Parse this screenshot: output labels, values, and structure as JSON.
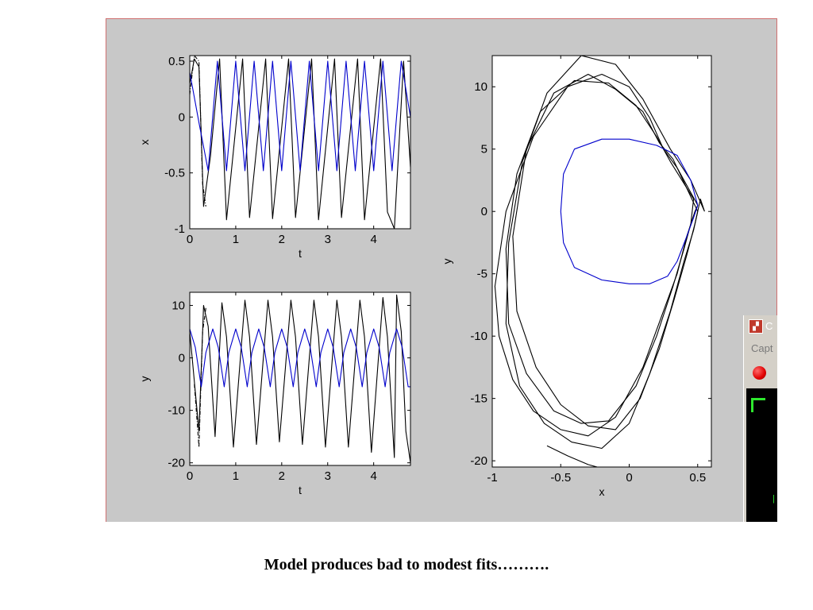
{
  "caption": "Model produces bad to modest fits……….",
  "capture_window": {
    "title_fragment": "C",
    "menu_fragment": "Capt",
    "icon": "film-clapper-icon",
    "record_icon": "red-record-icon"
  },
  "colors": {
    "panel_background": "#c8c8c8",
    "axes_background": "#ffffff",
    "observed_series": "#000000",
    "model_series": "#0000cc",
    "panel_border": "#d07070"
  },
  "chart_data": [
    {
      "type": "line",
      "xlabel": "t",
      "ylabel": "x",
      "xlim": [
        0,
        4.8
      ],
      "ylim": [
        -1,
        0.55
      ],
      "xticks": [
        0,
        1,
        2,
        3,
        4
      ],
      "xtick_labels": [
        "0",
        "1",
        "2",
        "3",
        "4"
      ],
      "yticks": [
        -1,
        -0.5,
        0,
        0.5
      ],
      "ytick_labels": [
        "-1",
        "-0.5",
        "0",
        "0.5"
      ],
      "grid": false,
      "series": [
        {
          "color": "#000000",
          "style": "solid",
          "x": [
            0.0,
            0.1,
            0.2,
            0.3,
            0.45,
            0.65,
            0.8,
            1.15,
            1.3,
            1.65,
            1.8,
            2.15,
            2.3,
            2.65,
            2.8,
            3.15,
            3.3,
            3.65,
            3.8,
            4.15,
            4.3,
            4.45,
            4.65,
            4.8
          ],
          "y": [
            0.3,
            0.52,
            0.45,
            -0.8,
            -0.35,
            0.52,
            -0.92,
            0.52,
            -0.9,
            0.52,
            -0.91,
            0.52,
            -0.9,
            0.52,
            -0.92,
            0.52,
            -0.9,
            0.52,
            -0.92,
            0.52,
            -0.85,
            -1.0,
            0.5,
            -0.45
          ]
        },
        {
          "color": "#000000",
          "style": "dashdot",
          "x": [
            0.0,
            0.1,
            0.2,
            0.28,
            0.35
          ],
          "y": [
            0.2,
            0.55,
            0.5,
            -0.6,
            -0.8
          ]
        },
        {
          "color": "#0000cc",
          "style": "solid",
          "x": [
            0.0,
            0.2,
            0.4,
            0.6,
            0.8,
            1.0,
            1.2,
            1.4,
            1.6,
            1.8,
            2.0,
            2.2,
            2.4,
            2.6,
            2.8,
            3.0,
            3.2,
            3.4,
            3.6,
            3.8,
            4.0,
            4.2,
            4.4,
            4.6,
            4.8
          ],
          "y": [
            0.4,
            -0.05,
            -0.48,
            0.5,
            -0.48,
            0.5,
            -0.48,
            0.5,
            -0.48,
            0.5,
            -0.48,
            0.5,
            -0.48,
            0.5,
            -0.48,
            0.5,
            -0.48,
            0.5,
            -0.48,
            0.5,
            -0.48,
            0.5,
            -0.48,
            0.5,
            0.0
          ]
        }
      ]
    },
    {
      "type": "line",
      "xlabel": "t",
      "ylabel": "y",
      "xlim": [
        0,
        4.8
      ],
      "ylim": [
        -20.5,
        12.5
      ],
      "xticks": [
        0,
        1,
        2,
        3,
        4
      ],
      "xtick_labels": [
        "0",
        "1",
        "2",
        "3",
        "4"
      ],
      "yticks": [
        -20,
        -10,
        0,
        10
      ],
      "ytick_labels": [
        "-20",
        "-10",
        "0",
        "10"
      ],
      "grid": false,
      "series": [
        {
          "color": "#000000",
          "style": "solid",
          "x": [
            0.0,
            0.2,
            0.3,
            0.4,
            0.55,
            0.7,
            0.8,
            0.95,
            1.2,
            1.3,
            1.45,
            1.7,
            1.8,
            1.95,
            2.2,
            2.3,
            2.45,
            2.7,
            2.8,
            2.95,
            3.2,
            3.3,
            3.45,
            3.7,
            3.8,
            3.95,
            4.2,
            4.3,
            4.45,
            4.5,
            4.6,
            4.7,
            4.8
          ],
          "y": [
            5.0,
            -14.0,
            10.0,
            6.0,
            -15.0,
            10.5,
            4.0,
            -17.0,
            11.0,
            4.0,
            -16.5,
            11.0,
            4.0,
            -16.0,
            11.0,
            4.0,
            -16.5,
            11.0,
            4.0,
            -17.0,
            11.0,
            4.0,
            -17.0,
            11.0,
            4.0,
            -18.0,
            11.5,
            4.0,
            -19.0,
            12.0,
            5.0,
            -14.0,
            -20.0
          ]
        },
        {
          "color": "#000000",
          "style": "dashdot",
          "x": [
            0.1,
            0.2,
            0.28,
            0.35
          ],
          "y": [
            -5.0,
            -17.0,
            5.0,
            9.5
          ]
        },
        {
          "color": "#0000cc",
          "style": "solid",
          "x": [
            0.0,
            0.12,
            0.25,
            0.35,
            0.5,
            0.62,
            0.75,
            0.85,
            1.0,
            1.12,
            1.25,
            1.35,
            1.5,
            1.62,
            1.75,
            1.85,
            2.0,
            2.12,
            2.25,
            2.35,
            2.5,
            2.62,
            2.75,
            2.85,
            3.0,
            3.12,
            3.25,
            3.35,
            3.5,
            3.62,
            3.75,
            3.85,
            4.0,
            4.12,
            4.25,
            4.35,
            4.5,
            4.62,
            4.75,
            4.8
          ],
          "y": [
            5.5,
            2.0,
            -5.5,
            1.0,
            5.5,
            2.0,
            -5.5,
            1.0,
            5.5,
            2.0,
            -5.5,
            1.0,
            5.5,
            2.0,
            -5.5,
            1.0,
            5.5,
            2.0,
            -5.5,
            1.0,
            5.5,
            2.0,
            -5.5,
            1.0,
            5.5,
            2.0,
            -5.5,
            1.0,
            5.5,
            2.0,
            -5.5,
            1.0,
            5.5,
            2.0,
            -5.5,
            1.0,
            5.5,
            2.0,
            -5.5,
            -5.5
          ]
        }
      ]
    },
    {
      "type": "line",
      "xlabel": "x",
      "ylabel": "y",
      "xlim": [
        -1,
        0.6
      ],
      "ylim": [
        -20.5,
        12.5
      ],
      "xticks": [
        -1,
        -0.5,
        0,
        0.5
      ],
      "xtick_labels": [
        "-1",
        "-0.5",
        "0",
        "0.5"
      ],
      "yticks": [
        -20,
        -15,
        -10,
        -5,
        0,
        5,
        10
      ],
      "ytick_labels": [
        "-20",
        "-15",
        "-10",
        "-5",
        "0",
        "5",
        "10"
      ],
      "grid": false,
      "series": [
        {
          "color": "#000000",
          "style": "solid",
          "x": [
            0.5,
            0.35,
            0.25,
            0.15,
            0.0,
            -0.2,
            -0.45,
            -0.7,
            -0.9,
            -0.98,
            -0.95,
            -0.85,
            -0.7,
            -0.5,
            -0.3,
            -0.1,
            0.1,
            0.25,
            0.35,
            0.42,
            0.48,
            0.5
          ],
          "y": [
            0.5,
            3.5,
            5.0,
            7.5,
            10.0,
            11.0,
            10.0,
            6.0,
            0.0,
            -6.0,
            -10.0,
            -13.5,
            -16.0,
            -17.5,
            -18.0,
            -16.5,
            -12.5,
            -8.0,
            -5.0,
            -2.0,
            0.0,
            0.5
          ]
        },
        {
          "color": "#000000",
          "style": "solid",
          "x": [
            0.47,
            0.3,
            0.2,
            0.05,
            -0.15,
            -0.4,
            -0.65,
            -0.82,
            -0.9,
            -0.88,
            -0.75,
            -0.55,
            -0.35,
            -0.15,
            0.05,
            0.2,
            0.32,
            0.4,
            0.45,
            0.47
          ],
          "y": [
            1.0,
            4.0,
            6.0,
            8.5,
            10.3,
            10.5,
            8.0,
            3.0,
            -3.0,
            -9.0,
            -13.0,
            -16.0,
            -17.0,
            -16.8,
            -14.0,
            -10.0,
            -6.0,
            -3.0,
            -1.0,
            1.0
          ]
        },
        {
          "color": "#000000",
          "style": "solid",
          "x": [
            0.5,
            0.32,
            0.22,
            0.1,
            -0.1,
            -0.3,
            -0.55,
            -0.75,
            -0.85,
            -0.82,
            -0.68,
            -0.5,
            -0.3,
            -0.1,
            0.08,
            0.22,
            0.33,
            0.42,
            0.48,
            0.5
          ],
          "y": [
            0.0,
            4.2,
            5.5,
            8.0,
            9.8,
            11.0,
            9.5,
            5.0,
            -2.0,
            -8.0,
            -12.5,
            -15.5,
            -17.2,
            -17.5,
            -15.0,
            -11.0,
            -7.0,
            -3.5,
            -1.0,
            0.0
          ]
        },
        {
          "color": "#000000",
          "style": "solid",
          "x": [
            0.55,
            0.45,
            0.3,
            0.1,
            -0.1,
            -0.35,
            -0.6,
            -0.78,
            -0.88,
            -0.9,
            -0.8,
            -0.62,
            -0.42,
            -0.2,
            0.0,
            0.15,
            0.3,
            0.4,
            0.47,
            0.52,
            0.55
          ],
          "y": [
            0.0,
            2.5,
            5.0,
            9.0,
            11.8,
            12.5,
            9.5,
            4.0,
            -2.5,
            -9.0,
            -14.0,
            -17.0,
            -18.5,
            -19.0,
            -17.0,
            -13.0,
            -8.0,
            -4.0,
            -1.5,
            1.0,
            0.0
          ]
        },
        {
          "color": "#000000",
          "style": "solid",
          "x": [
            -0.6,
            -0.45,
            -0.3,
            -0.2
          ],
          "y": [
            -18.8,
            -19.6,
            -20.3,
            -20.6
          ]
        },
        {
          "color": "#0000cc",
          "style": "solid",
          "x": [
            0.5,
            0.45,
            0.35,
            0.2,
            0.0,
            -0.2,
            -0.4,
            -0.48,
            -0.5,
            -0.48,
            -0.4,
            -0.2,
            0.0,
            0.15,
            0.28,
            0.35,
            0.42,
            0.47,
            0.5
          ],
          "y": [
            0.5,
            2.5,
            4.5,
            5.3,
            5.8,
            5.8,
            5.0,
            3.0,
            0.0,
            -2.5,
            -4.5,
            -5.5,
            -5.8,
            -5.8,
            -5.2,
            -4.0,
            -2.0,
            -0.5,
            0.5
          ]
        }
      ]
    }
  ]
}
